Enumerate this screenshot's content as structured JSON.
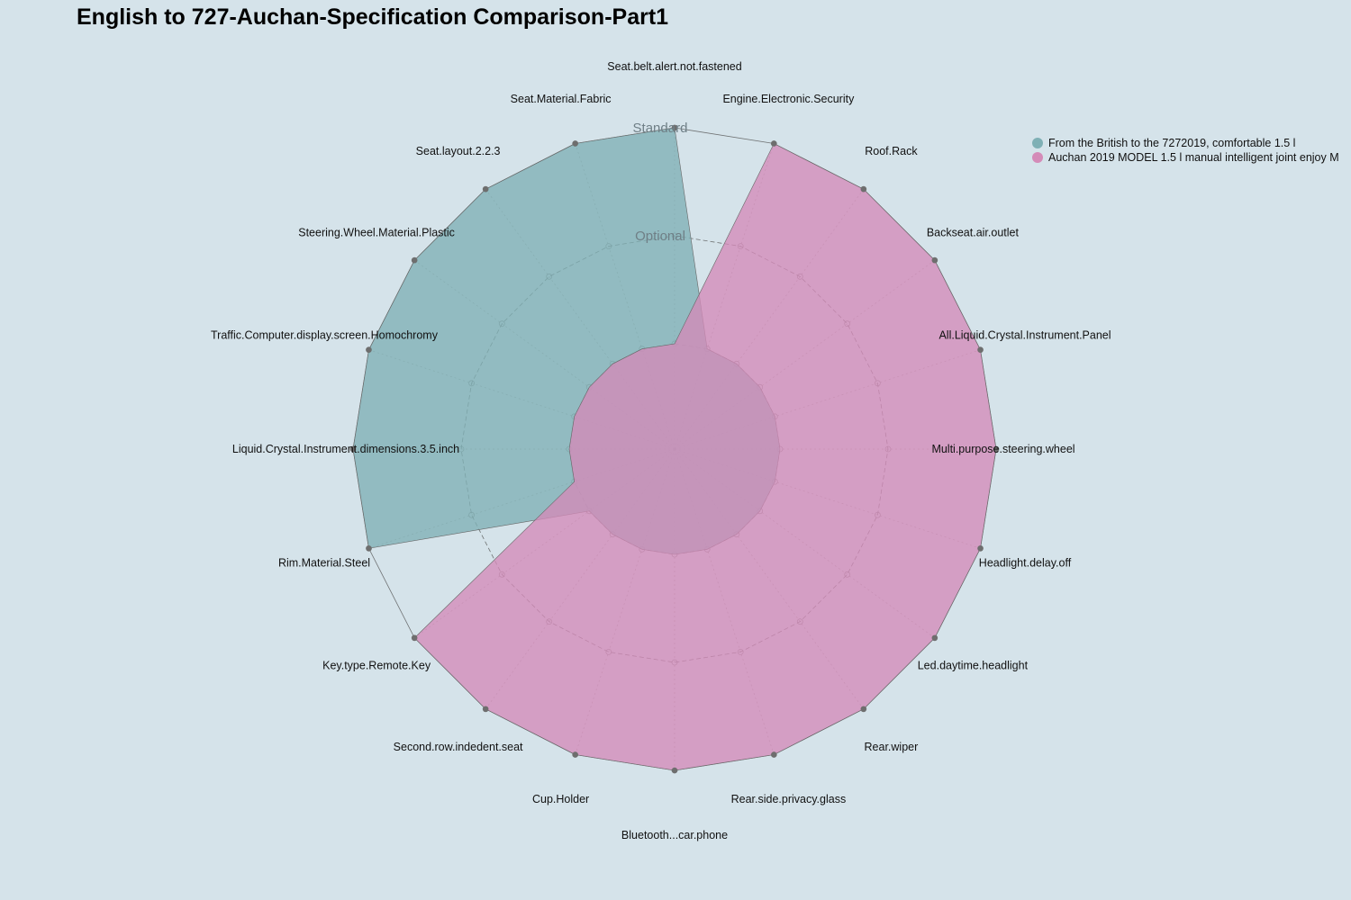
{
  "chart_data": {
    "type": "radar",
    "title": "English to 727-Auchan-Specification Comparison-Part1",
    "axes": [
      "Seat.belt.alert.not.fastened",
      "Engine.Electronic.Security",
      "Roof.Rack",
      "Backseat.air.outlet",
      "All.Liquid.Crystal.Instrument.Panel",
      "Multi.purpose.steering.wheel",
      "Headlight.delay.off",
      "Led.daytime.headlight",
      "Rear.wiper",
      "Rear.side.privacy.glass",
      "Bluetooth...car.phone",
      "Cup.Holder",
      "Second.row.indedent.seat",
      "Key.type.Remote.Key",
      "Rim.Material.Steel",
      "Liquid.Crystal.Instrument.dimensions.3.5.inch",
      "Traffic.Computer.display.screen.Homochromy",
      "Steering.Wheel.Material.Plastic",
      "Seat.layout.2.2.3",
      "Seat.Material.Fabric"
    ],
    "levels": [
      "",
      "Optional",
      "Standard"
    ],
    "scale_max": 2,
    "series": [
      {
        "name": "From the British to the 7272019, comfortable 1.5 l",
        "color": "#7fb0b5",
        "values": [
          2,
          0,
          0,
          0,
          0,
          0,
          0,
          0,
          0,
          0,
          0,
          0,
          0,
          0,
          2,
          2,
          2,
          2,
          2,
          2
        ]
      },
      {
        "name": "Auchan 2019 MODEL 1.5 l manual intelligent joint enjoy M",
        "color": "#d48bb8",
        "values": [
          0,
          2,
          2,
          2,
          2,
          2,
          2,
          2,
          2,
          2,
          2,
          2,
          2,
          2,
          0,
          0,
          0,
          0,
          0,
          0
        ]
      }
    ]
  }
}
